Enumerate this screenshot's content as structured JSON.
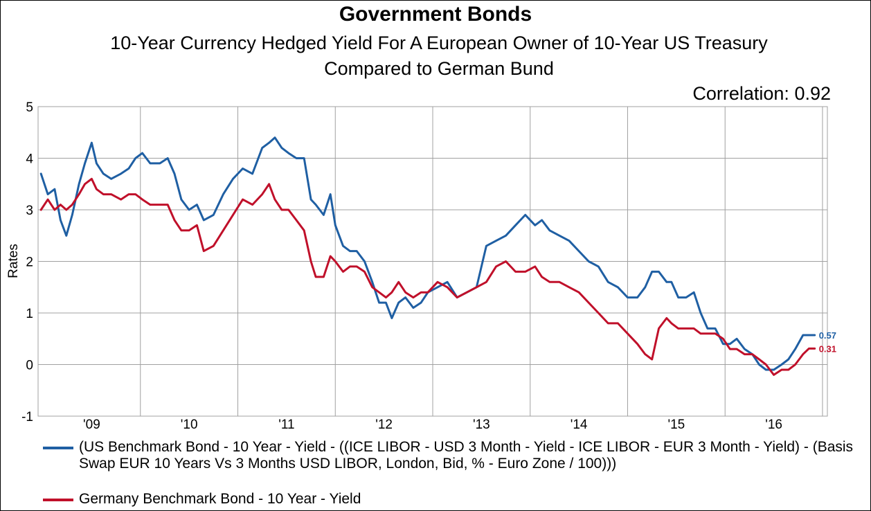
{
  "title": "Government Bonds",
  "subtitle_line1": "10-Year Currency Hedged Yield For A European Owner of 10-Year US Treasury",
  "subtitle_line2": "Compared to German Bund",
  "annotation": "Correlation: 0.92",
  "colors": {
    "us": "#1f5fa3",
    "de": "#c0102a",
    "grid": "#a0a0a0"
  },
  "chart_data": {
    "type": "line",
    "title": "Government Bonds",
    "ylabel": "Rates",
    "xlabel": "",
    "ylim": [
      -1,
      5
    ],
    "yticks": [
      -1,
      0,
      1,
      2,
      3,
      4,
      5
    ],
    "xlim": [
      2008.45,
      2016.55
    ],
    "xtick_labels": [
      "'09",
      "'10",
      "'11",
      "'12",
      "'13",
      "'14",
      "'15",
      "'16"
    ],
    "xtick_positions": [
      2009,
      2010,
      2011,
      2012,
      2013,
      2014,
      2015,
      2016
    ],
    "grid": true,
    "legend_position": "bottom",
    "series": [
      {
        "name": "(US Benchmark Bond - 10 Year - Yield - ((ICE LIBOR - USD 3 Month - Yield - ICE LIBOR - EUR 3 Month - Yield) - (Basis Swap EUR 10 Years Vs 3 Months USD LIBOR, London, Bid, % - Euro Zone / 100)))",
        "color": "#1f5fa3",
        "end_label": "0.57",
        "x": [
          2008.48,
          2008.55,
          2008.62,
          2008.68,
          2008.74,
          2008.8,
          2008.87,
          2008.93,
          2009.0,
          2009.05,
          2009.12,
          2009.2,
          2009.3,
          2009.38,
          2009.45,
          2009.52,
          2009.6,
          2009.7,
          2009.78,
          2009.85,
          2009.92,
          2010.0,
          2010.08,
          2010.15,
          2010.25,
          2010.35,
          2010.45,
          2010.55,
          2010.65,
          2010.75,
          2010.82,
          2010.88,
          2010.95,
          2011.02,
          2011.1,
          2011.18,
          2011.25,
          2011.3,
          2011.38,
          2011.45,
          2011.5,
          2011.58,
          2011.65,
          2011.72,
          2011.8,
          2011.88,
          2011.95,
          2012.02,
          2012.08,
          2012.15,
          2012.22,
          2012.3,
          2012.38,
          2012.45,
          2012.55,
          2012.65,
          2012.75,
          2012.85,
          2012.95,
          2013.05,
          2013.15,
          2013.25,
          2013.35,
          2013.45,
          2013.55,
          2013.62,
          2013.7,
          2013.8,
          2013.9,
          2014.0,
          2014.1,
          2014.2,
          2014.3,
          2014.4,
          2014.5,
          2014.6,
          2014.68,
          2014.75,
          2014.82,
          2014.9,
          2014.95,
          2015.02,
          2015.1,
          2015.18,
          2015.25,
          2015.32,
          2015.4,
          2015.48,
          2015.55,
          2015.62,
          2015.7,
          2015.78,
          2015.85,
          2015.92,
          2016.0,
          2016.08,
          2016.15,
          2016.22,
          2016.3,
          2016.36,
          2016.42
        ],
        "values": [
          3.7,
          3.3,
          3.4,
          2.8,
          2.5,
          2.9,
          3.5,
          3.9,
          4.3,
          3.9,
          3.7,
          3.6,
          3.7,
          3.8,
          4.0,
          4.1,
          3.9,
          3.9,
          4.0,
          3.7,
          3.2,
          3.0,
          3.1,
          2.8,
          2.9,
          3.3,
          3.6,
          3.8,
          3.7,
          4.2,
          4.3,
          4.4,
          4.2,
          4.1,
          4.0,
          4.0,
          3.2,
          3.1,
          2.9,
          3.3,
          2.7,
          2.3,
          2.2,
          2.2,
          2.0,
          1.6,
          1.2,
          1.2,
          0.9,
          1.2,
          1.3,
          1.1,
          1.2,
          1.4,
          1.5,
          1.6,
          1.3,
          1.4,
          1.5,
          2.3,
          2.4,
          2.5,
          2.7,
          2.9,
          2.7,
          2.8,
          2.6,
          2.5,
          2.4,
          2.2,
          2.0,
          1.9,
          1.6,
          1.5,
          1.3,
          1.3,
          1.5,
          1.8,
          1.8,
          1.6,
          1.6,
          1.3,
          1.3,
          1.4,
          1.0,
          0.7,
          0.7,
          0.4,
          0.4,
          0.5,
          0.3,
          0.2,
          0.0,
          -0.1,
          -0.1,
          0.0,
          0.1,
          0.3,
          0.57,
          0.57,
          0.57
        ]
      },
      {
        "name": "Germany Benchmark Bond - 10 Year - Yield",
        "color": "#c0102a",
        "end_label": "0.31",
        "x": [
          2008.48,
          2008.55,
          2008.62,
          2008.68,
          2008.74,
          2008.8,
          2008.87,
          2008.93,
          2009.0,
          2009.05,
          2009.12,
          2009.2,
          2009.3,
          2009.38,
          2009.45,
          2009.52,
          2009.6,
          2009.7,
          2009.78,
          2009.85,
          2009.92,
          2010.0,
          2010.08,
          2010.15,
          2010.25,
          2010.35,
          2010.45,
          2010.55,
          2010.65,
          2010.75,
          2010.82,
          2010.88,
          2010.95,
          2011.02,
          2011.1,
          2011.18,
          2011.25,
          2011.3,
          2011.38,
          2011.45,
          2011.5,
          2011.58,
          2011.65,
          2011.72,
          2011.8,
          2011.88,
          2011.95,
          2012.02,
          2012.08,
          2012.15,
          2012.22,
          2012.3,
          2012.38,
          2012.45,
          2012.55,
          2012.65,
          2012.75,
          2012.85,
          2012.95,
          2013.05,
          2013.15,
          2013.25,
          2013.35,
          2013.45,
          2013.55,
          2013.62,
          2013.7,
          2013.8,
          2013.9,
          2014.0,
          2014.1,
          2014.2,
          2014.3,
          2014.4,
          2014.5,
          2014.6,
          2014.68,
          2014.75,
          2014.82,
          2014.9,
          2014.95,
          2015.02,
          2015.1,
          2015.18,
          2015.25,
          2015.32,
          2015.4,
          2015.48,
          2015.55,
          2015.62,
          2015.7,
          2015.78,
          2015.85,
          2015.92,
          2016.0,
          2016.08,
          2016.15,
          2016.22,
          2016.3,
          2016.36,
          2016.42
        ],
        "values": [
          3.0,
          3.2,
          3.0,
          3.1,
          3.0,
          3.1,
          3.3,
          3.5,
          3.6,
          3.4,
          3.3,
          3.3,
          3.2,
          3.3,
          3.3,
          3.2,
          3.1,
          3.1,
          3.1,
          2.8,
          2.6,
          2.6,
          2.7,
          2.2,
          2.3,
          2.6,
          2.9,
          3.2,
          3.1,
          3.3,
          3.5,
          3.2,
          3.0,
          3.0,
          2.8,
          2.6,
          2.0,
          1.7,
          1.7,
          2.1,
          2.0,
          1.8,
          1.9,
          1.9,
          1.8,
          1.5,
          1.4,
          1.3,
          1.4,
          1.6,
          1.4,
          1.3,
          1.4,
          1.4,
          1.6,
          1.5,
          1.3,
          1.4,
          1.5,
          1.6,
          1.9,
          2.0,
          1.8,
          1.8,
          1.9,
          1.7,
          1.6,
          1.6,
          1.5,
          1.4,
          1.2,
          1.0,
          0.8,
          0.8,
          0.6,
          0.4,
          0.2,
          0.1,
          0.7,
          0.9,
          0.8,
          0.7,
          0.7,
          0.7,
          0.6,
          0.6,
          0.6,
          0.5,
          0.3,
          0.3,
          0.2,
          0.2,
          0.1,
          0.0,
          -0.2,
          -0.1,
          -0.1,
          0.0,
          0.2,
          0.31,
          0.31
        ]
      }
    ]
  }
}
